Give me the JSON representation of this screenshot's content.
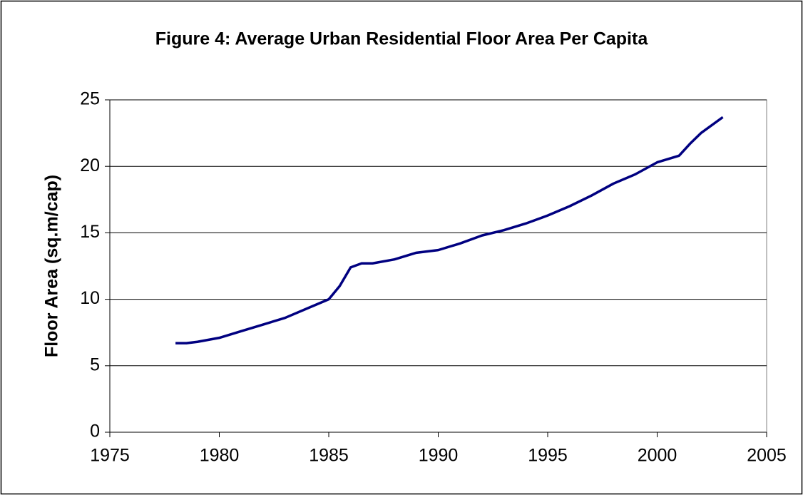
{
  "chart_data": {
    "type": "line",
    "title": "Figure 4: Average Urban Residential Floor Area Per Capita",
    "y_label": "Floor Area (sq.m/cap)",
    "series": [
      {
        "color": "#000080",
        "x": [
          1978,
          1978.5,
          1979,
          1980,
          1981,
          1982,
          1983,
          1984,
          1985,
          1985.5,
          1986,
          1986.5,
          1987,
          1988,
          1989,
          1990,
          1991,
          1992,
          1993,
          1994,
          1995,
          1996,
          1997,
          1998,
          1999,
          2000,
          2001,
          2001.5,
          2002,
          2003
        ],
        "values": [
          6.7,
          6.7,
          6.8,
          7.1,
          7.6,
          8.1,
          8.6,
          9.3,
          10.0,
          11.0,
          12.4,
          12.7,
          12.7,
          13.0,
          13.5,
          13.7,
          14.2,
          14.8,
          15.2,
          15.7,
          16.3,
          17.0,
          17.8,
          18.7,
          19.4,
          20.3,
          20.8,
          21.7,
          22.5,
          23.7
        ]
      }
    ],
    "xlim": [
      1975,
      2005
    ],
    "xticks": [
      1975,
      1980,
      1985,
      1990,
      1995,
      2000,
      2005
    ],
    "ylim": [
      0,
      25
    ],
    "yticks": [
      0,
      5,
      10,
      15,
      20,
      25
    ],
    "grid": true
  }
}
